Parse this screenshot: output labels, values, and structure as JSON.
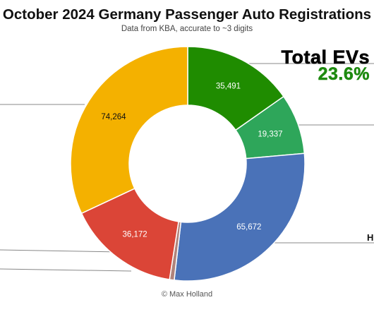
{
  "chart_data": {
    "type": "pie",
    "donut": true,
    "title": "October 2024 Germany Passenger Auto Registrations",
    "subtitle": "Data from KBA, accurate to ~3 digits",
    "slices": [
      {
        "value": 35491,
        "label": "35,491",
        "color": "#1f8c00"
      },
      {
        "value": 19337,
        "label": "19,337",
        "color": "#2ea65a"
      },
      {
        "value": 65672,
        "label": "65,672",
        "color": "#4a72b8"
      },
      {
        "value": 1500,
        "label": "",
        "color": "#b0837b"
      },
      {
        "value": 36172,
        "label": "36,172",
        "color": "#db4537"
      },
      {
        "value": 74264,
        "label": "74,264",
        "color": "#f4b100"
      }
    ],
    "legend": "none"
  },
  "annotation": {
    "ev_label": "Total EVs",
    "ev_value": "23.6%",
    "ev_color": "#1e8a10",
    "edge_letter": "H"
  },
  "credit": "© Max Holland"
}
